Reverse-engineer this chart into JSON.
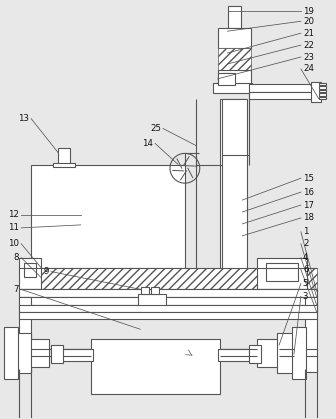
{
  "bg_color": "#e8e8e8",
  "line_color": "#555555",
  "label_color": "#111111",
  "figsize": [
    3.36,
    4.19
  ],
  "dpi": 100
}
